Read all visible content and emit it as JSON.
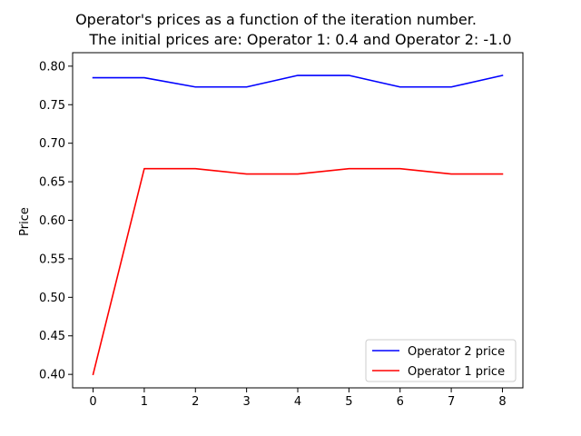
{
  "chart_data": {
    "type": "line",
    "title_line1": "Operator's prices as a function of the iteration number.",
    "title_line2": "The initial prices are: Operator 1: 0.4 and Operator 2: -1.0",
    "xlabel": "",
    "ylabel": "Price",
    "x": [
      0,
      1,
      2,
      3,
      4,
      5,
      6,
      7,
      8
    ],
    "xlim": [
      -0.4,
      8.4
    ],
    "ylim": [
      0.3825,
      0.8175
    ],
    "xticks": [
      0,
      1,
      2,
      3,
      4,
      5,
      6,
      7,
      8
    ],
    "yticks": [
      0.4,
      0.45,
      0.5,
      0.55,
      0.6,
      0.65,
      0.7,
      0.75,
      0.8
    ],
    "ytick_labels": [
      "0.40",
      "0.45",
      "0.50",
      "0.55",
      "0.60",
      "0.65",
      "0.70",
      "0.75",
      "0.80"
    ],
    "grid": false,
    "legend_position": "lower-right",
    "series": [
      {
        "name": "Operator 2 price",
        "color": "#0000ff",
        "values": [
          0.785,
          0.785,
          0.773,
          0.773,
          0.788,
          0.788,
          0.773,
          0.773,
          0.788
        ]
      },
      {
        "name": "Operator 1 price",
        "color": "#ff0000",
        "values": [
          0.4,
          0.667,
          0.667,
          0.66,
          0.66,
          0.667,
          0.667,
          0.66,
          0.66
        ]
      }
    ]
  }
}
